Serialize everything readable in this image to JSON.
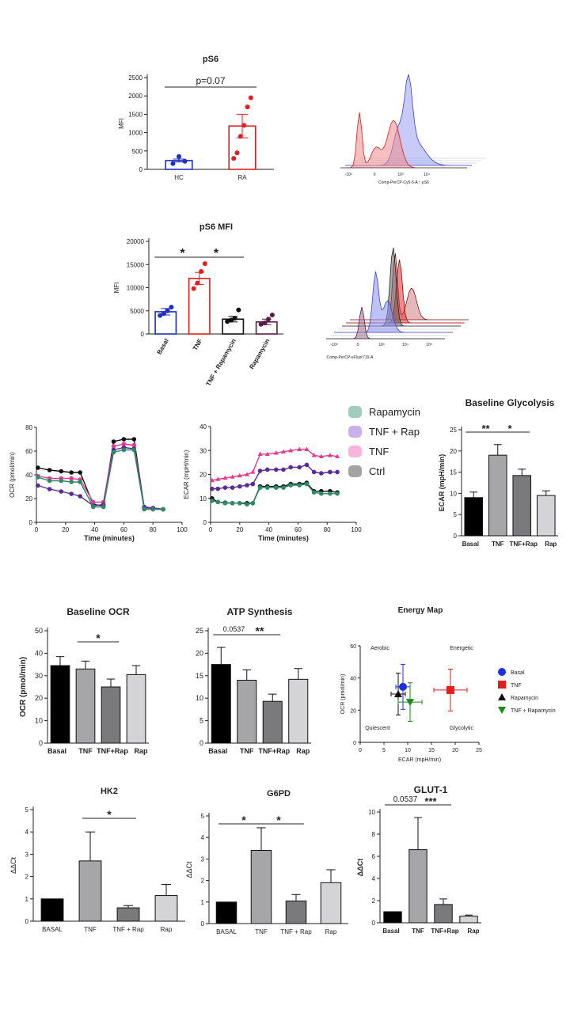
{
  "colors": {
    "hc": "#1f2fbf",
    "ra": "#e01f1f",
    "basal": "#1f2fbf",
    "tnf": "#e01f1f",
    "tnfrap": "#111111",
    "rap": "#5a1a4a",
    "bar_basal": "#000000",
    "bar_tnf": "#a6a6a8",
    "bar_tnfrap": "#7a7a7c",
    "bar_rap": "#d4d4d6"
  },
  "chart_data": [
    {
      "id": "ps6",
      "type": "bar",
      "title": "pS6",
      "ylabel": "MFI",
      "ylim": [
        0,
        2500
      ],
      "yticks": [
        0,
        500,
        1000,
        1500,
        2000,
        2500
      ],
      "categories": [
        "HC",
        "RA"
      ],
      "values": [
        240,
        1180
      ],
      "errors": [
        40,
        320
      ],
      "points": [
        [
          160,
          350,
          220
        ],
        [
          300,
          450,
          900,
          1200,
          1700,
          1950
        ]
      ],
      "annotations": [
        {
          "text": "p=0.07",
          "from": 0,
          "to": 1
        }
      ]
    },
    {
      "id": "ps6hist",
      "type": "area",
      "title": "",
      "xlabel": "Comp-PerCP-Cy5-5-A :: pS6",
      "xticks": [
        "-10³",
        "0",
        "10³",
        "10⁴"
      ]
    },
    {
      "id": "ps6mfi",
      "type": "bar",
      "title": "pS6 MFI",
      "ylabel": "MFI",
      "ylim": [
        0,
        20000
      ],
      "yticks": [
        0,
        5000,
        10000,
        15000,
        20000
      ],
      "categories": [
        "Basal",
        "TNF",
        "TNF + Rapamycin",
        "Rapamycin"
      ],
      "values": [
        4800,
        12000,
        3200,
        2600
      ],
      "errors": [
        700,
        1300,
        600,
        600
      ],
      "points": [
        [
          4000,
          4400,
          5000,
          5800
        ],
        [
          9800,
          11000,
          13500,
          15200
        ],
        [
          2700,
          3000,
          3400,
          5200
        ],
        [
          2100,
          2400,
          3200,
          4100
        ]
      ],
      "annotations": [
        {
          "text": "*",
          "from": 0,
          "to": 1
        },
        {
          "text": "*",
          "from": 1,
          "to": 2
        }
      ]
    },
    {
      "id": "ps6mfihist",
      "type": "area",
      "title": "",
      "xlabel": "Comp-PerCP-eFluor710-A",
      "xticks": [
        "-10³",
        "0",
        "10³",
        "10⁴",
        "10⁵"
      ]
    },
    {
      "id": "ocr",
      "type": "line",
      "title": "",
      "xlabel": "Time (minutes)",
      "ylabel": "OCR (pmol/min)",
      "xlim": [
        0,
        100
      ],
      "ylim": [
        0,
        80
      ],
      "xticks": [
        0,
        20,
        40,
        60,
        80,
        100
      ],
      "yticks": [
        0,
        20,
        40,
        60,
        80
      ],
      "x": [
        1,
        9,
        17,
        24,
        30,
        39,
        46,
        53,
        60,
        67,
        74,
        80,
        87
      ],
      "series": [
        {
          "name": "Ctrl",
          "values": [
            46,
            44,
            43,
            42,
            42,
            15,
            14,
            68,
            70,
            70,
            12,
            12,
            11
          ]
        },
        {
          "name": "TNF",
          "values": [
            39,
            37,
            37,
            37,
            36,
            17,
            17,
            64,
            66,
            65,
            12,
            11,
            11
          ]
        },
        {
          "name": "TNF + Rap",
          "values": [
            31,
            28,
            26,
            24,
            22,
            14,
            15,
            61,
            63,
            62,
            13,
            12,
            11
          ]
        },
        {
          "name": "Rapamycin",
          "values": [
            38,
            35,
            35,
            34,
            34,
            13,
            13,
            59,
            61,
            61,
            11,
            11,
            11
          ]
        }
      ]
    },
    {
      "id": "ecar",
      "type": "line",
      "title": "",
      "xlabel": "Time (minutes)",
      "ylabel": "ECAR (mpH/min)",
      "xlim": [
        0,
        100
      ],
      "ylim": [
        0,
        40
      ],
      "xticks": [
        0,
        20,
        40,
        60,
        80,
        100
      ],
      "yticks": [
        0,
        10,
        20,
        30,
        40
      ],
      "x": [
        1,
        5,
        10,
        15,
        20,
        25,
        29,
        34,
        39,
        45,
        50,
        55,
        61,
        66,
        71,
        76,
        82,
        87
      ],
      "series": [
        {
          "name": "Ctrl",
          "values": [
            10,
            8.5,
            8.2,
            8,
            8,
            8,
            8,
            15,
            15,
            15,
            15,
            16,
            16,
            16.5,
            13,
            13,
            13,
            12.5
          ]
        },
        {
          "name": "TNF",
          "values": [
            17.5,
            18,
            18.5,
            19,
            19.5,
            20,
            21,
            28.5,
            28.5,
            29,
            29.5,
            30,
            30.5,
            30.5,
            28,
            27.5,
            28,
            27.5
          ]
        },
        {
          "name": "TNF + Rap",
          "values": [
            14,
            14,
            14.5,
            14.5,
            15,
            15.5,
            16,
            21.5,
            22,
            22,
            22,
            23,
            23,
            24,
            21,
            20.5,
            21,
            21
          ]
        },
        {
          "name": "Rapamycin",
          "values": [
            9,
            8.5,
            8,
            8,
            8,
            7.5,
            8,
            14.5,
            14.5,
            14.5,
            14.5,
            15.5,
            15.5,
            16,
            12.5,
            12,
            12,
            12
          ]
        }
      ]
    },
    {
      "id": "legend",
      "type": "table",
      "title": "",
      "entries": [
        "Rapamycin",
        "TNF + Rap",
        "TNF",
        "Ctrl"
      ],
      "colors": [
        "#2e8b6a",
        "#8a4fd6",
        "#ee5bb0",
        "#333333"
      ]
    },
    {
      "id": "glyco",
      "type": "bar",
      "title": "Baseline Glycolysis",
      "ylabel": "ECAR (mpH/min)",
      "ylim": [
        0,
        25
      ],
      "yticks": [
        0,
        5,
        10,
        15,
        20,
        25
      ],
      "categories": [
        "Basal",
        "TNF",
        "TNF+Rap",
        "Rap"
      ],
      "values": [
        9,
        19,
        14.2,
        9.5
      ],
      "errors": [
        1.3,
        2.5,
        1.5,
        1.1
      ],
      "annotations": [
        {
          "text": "**",
          "from": 0,
          "to": 1
        },
        {
          "text": "*",
          "from": 1,
          "to": 2
        }
      ]
    },
    {
      "id": "ocrbar",
      "type": "bar",
      "title": "Baseline OCR",
      "ylabel": "OCR (pmol/min)",
      "ylim": [
        0,
        50
      ],
      "yticks": [
        0,
        10,
        20,
        30,
        40,
        50
      ],
      "categories": [
        "Basal",
        "TNF",
        "TNF+Rap",
        "Rap"
      ],
      "values": [
        34.5,
        33,
        25,
        30.5
      ],
      "errors": [
        4,
        3.5,
        3.5,
        4
      ],
      "annotations": [
        {
          "text": "*",
          "from": 1,
          "to": 2
        }
      ]
    },
    {
      "id": "atp",
      "type": "bar",
      "title": "ATP Synthesis",
      "ylabel": "",
      "ylim": [
        0,
        25
      ],
      "yticks": [
        0,
        5,
        10,
        15,
        20,
        25
      ],
      "categories": [
        "Basal",
        "TNF",
        "TNF+Rap",
        "Rap"
      ],
      "values": [
        17.5,
        14,
        9.3,
        14.2
      ],
      "errors": [
        3.8,
        2.3,
        1.6,
        2.4
      ],
      "annotations": [
        {
          "text": "0.0537",
          "from": 0,
          "to": 1
        },
        {
          "text": "**",
          "from": 1,
          "to": 2
        }
      ]
    },
    {
      "id": "energy",
      "type": "scatter",
      "title": "Energy Map",
      "xlabel": "ECAR (mpH/min)",
      "ylabel": "OCR (pmol/min)",
      "xlim": [
        0,
        25
      ],
      "ylim": [
        0,
        60
      ],
      "xticks": [
        0,
        5,
        10,
        15,
        20,
        25
      ],
      "yticks": [
        0,
        20,
        40,
        60
      ],
      "quadrants": [
        "Aerobic",
        "Energetic",
        "Quiescent",
        "Glycolytic"
      ],
      "series": [
        {
          "name": "Basal",
          "x": 9,
          "y": 34.5,
          "xerr": 1.5,
          "yerr": 14,
          "shape": "circle",
          "color": "#1f2fe0"
        },
        {
          "name": "TNF",
          "x": 19,
          "y": 32.5,
          "xerr": 3.5,
          "yerr": 13,
          "shape": "square",
          "color": "#e01f1f"
        },
        {
          "name": "Rapamycin",
          "x": 8,
          "y": 30,
          "xerr": 1.5,
          "yerr": 13,
          "shape": "triangle",
          "color": "#111111"
        },
        {
          "name": "TNF + Rapamycin",
          "x": 10.5,
          "y": 25,
          "xerr": 2.5,
          "yerr": 12,
          "shape": "triangle-down",
          "color": "#1a8a1a"
        }
      ]
    },
    {
      "id": "hk2",
      "type": "bar",
      "title": "HK2",
      "ylabel": "ΔΔCt",
      "ylim": [
        0,
        5
      ],
      "yticks": [
        0,
        1,
        2,
        3,
        4,
        5
      ],
      "categories": [
        "BASAL",
        "TNF",
        "TNF + Rap",
        "Rap"
      ],
      "values": [
        1,
        2.7,
        0.6,
        1.15
      ],
      "errors": [
        0,
        1.3,
        0.1,
        0.5
      ],
      "annotations": [
        {
          "text": "*",
          "from": 1,
          "to": 2
        }
      ]
    },
    {
      "id": "g6pd",
      "type": "bar",
      "title": "G6PD",
      "ylabel": "ΔΔCt",
      "ylim": [
        0,
        5
      ],
      "yticks": [
        0,
        1,
        2,
        3,
        4,
        5
      ],
      "categories": [
        "BASAL",
        "TNF",
        "TNF + Rap",
        "Rap"
      ],
      "values": [
        1,
        3.4,
        1.05,
        1.9
      ],
      "errors": [
        0,
        1.05,
        0.3,
        0.6
      ],
      "annotations": [
        {
          "text": "*",
          "from": 0,
          "to": 1
        },
        {
          "text": "*",
          "from": 1,
          "to": 2
        }
      ]
    },
    {
      "id": "glut1",
      "type": "bar",
      "title": "GLUT-1",
      "ylabel": "ΔΔCt",
      "ylim": [
        0,
        10
      ],
      "yticks": [
        0,
        2,
        4,
        6,
        8,
        10
      ],
      "categories": [
        "Basal",
        "TNF",
        "TNF+Rap",
        "Rap"
      ],
      "values": [
        1,
        6.6,
        1.65,
        0.6
      ],
      "errors": [
        0,
        2.9,
        0.5,
        0.1
      ],
      "annotations": [
        {
          "text": "0.0537",
          "from": 0,
          "to": 1
        },
        {
          "text": "***",
          "from": 1,
          "to": 2
        }
      ]
    }
  ]
}
